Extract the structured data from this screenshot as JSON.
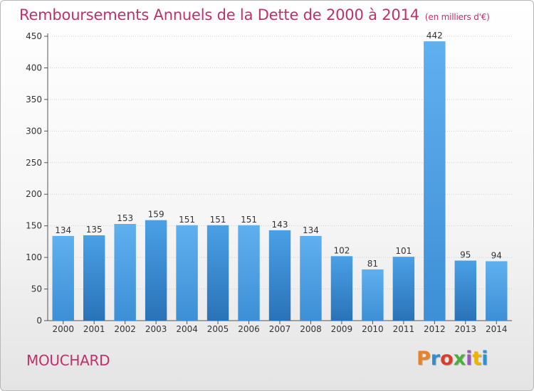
{
  "chart_data": {
    "type": "bar",
    "title": "Remboursements Annuels de la Dette de 2000 à 2014",
    "subtitle": "(en milliers d'€)",
    "categories": [
      "2000",
      "2001",
      "2002",
      "2003",
      "2004",
      "2005",
      "2006",
      "2007",
      "2008",
      "2009",
      "2010",
      "2011",
      "2012",
      "2013",
      "2014"
    ],
    "values": [
      134,
      135,
      153,
      159,
      151,
      151,
      151,
      143,
      134,
      102,
      81,
      101,
      442,
      95,
      94
    ],
    "ylim": [
      0,
      450
    ],
    "yticks": [
      0,
      50,
      100,
      150,
      200,
      250,
      300,
      350,
      400,
      450
    ],
    "grid": true,
    "bar_color": "#3d8fd6"
  },
  "footer": {
    "commune": "MOUCHARD",
    "logo_text": "Proxiti",
    "logo_colors": [
      "#e8832a",
      "#2f8fd0",
      "#d6402a",
      "#4caf3c",
      "#9b59b6",
      "#f0b400",
      "#2f8fd0"
    ]
  }
}
